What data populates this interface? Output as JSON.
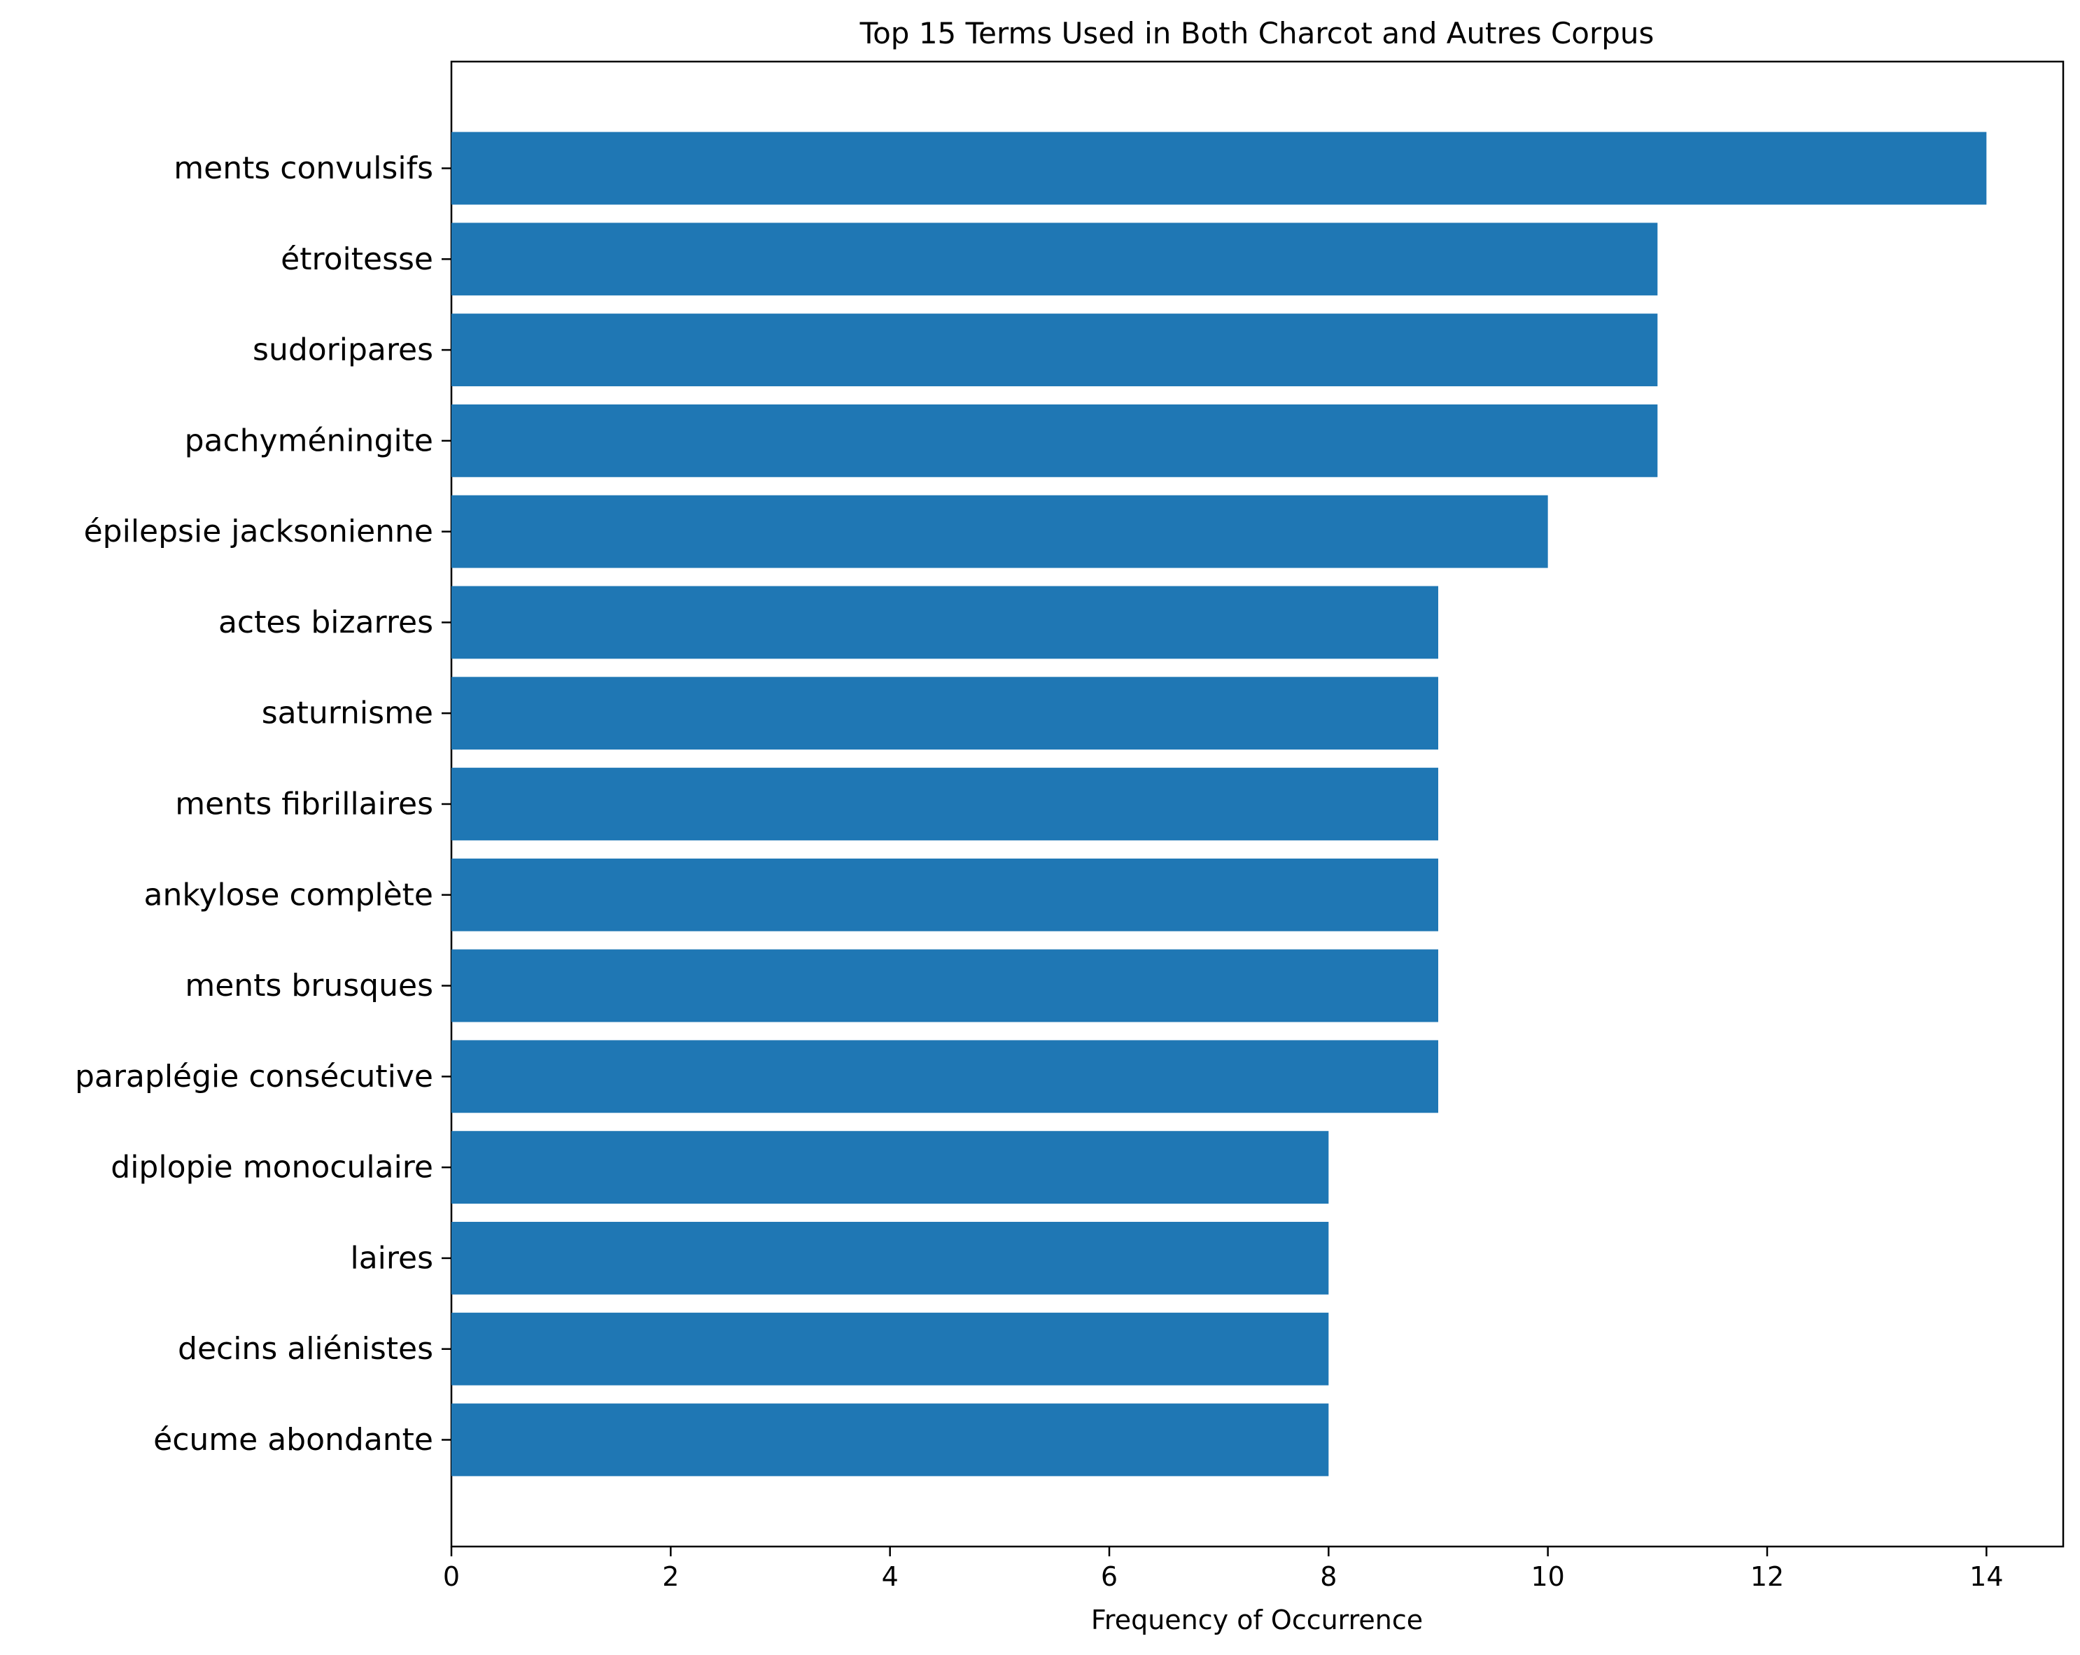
{
  "chart_data": {
    "type": "bar",
    "orientation": "horizontal",
    "title": "Top 15 Terms Used in Both Charcot and Autres Corpus",
    "xlabel": "Frequency of Occurrence",
    "ylabel": "",
    "xlim": [
      0,
      14.7
    ],
    "xticks": [
      0,
      2,
      4,
      6,
      8,
      10,
      12,
      14
    ],
    "grid": false,
    "bar_color": "#1f77b4",
    "categories": [
      "ments convulsifs",
      "étroitesse",
      "sudoripares",
      "pachyméningite",
      "épilepsie jacksonienne",
      "actes bizarres",
      "saturnisme",
      "ments fibrillaires",
      "ankylose complète",
      "ments brusques",
      "paraplégie consécutive",
      "diplopie monoculaire",
      "laires",
      "decins aliénistes",
      "écume abondante"
    ],
    "values": [
      14,
      11,
      11,
      11,
      10,
      9,
      9,
      9,
      9,
      9,
      9,
      8,
      8,
      8,
      8
    ]
  }
}
